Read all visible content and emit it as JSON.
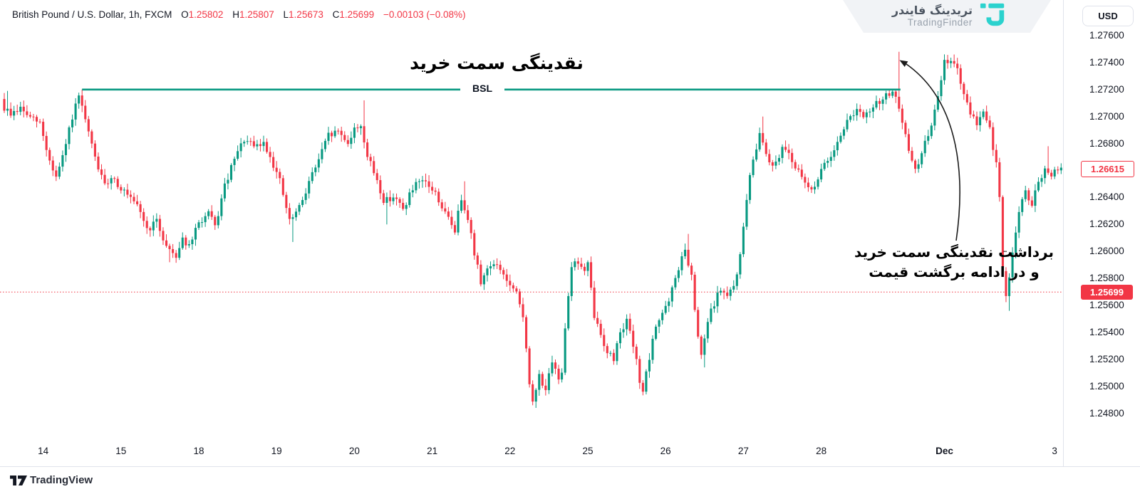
{
  "header": {
    "title": "British Pound / U.S. Dollar, 1h, FXCM",
    "ohlc": {
      "o_label": "O",
      "o": "1.25802",
      "h_label": "H",
      "h": "1.25807",
      "l_label": "L",
      "l": "1.25673",
      "c_label": "C",
      "c": "1.25699",
      "change": "−0.00103 (−0.08%)"
    }
  },
  "watermark": {
    "brand_fa": "تریدینگ فایندر",
    "brand_en": "TradingFinder",
    "logo_color": "#2BD2CE"
  },
  "currency_button": {
    "label": "USD"
  },
  "annotations": {
    "buy_side_liquidity_label": "نقدینگی سمت خرید",
    "bsl_line_label": "BSL",
    "sweep_note_line1": "برداشت نقدینگی سمت خرید",
    "sweep_note_line2": "و در ادامه برگشت قیمت"
  },
  "price_axis": {
    "last_price_label": "1.26615",
    "countdown_price_label": "1.25699"
  },
  "footer": {
    "brand": "TradingView"
  },
  "chart_data": {
    "type": "candlestick",
    "symbol": "British Pound / U.S. Dollar",
    "exchange": "FXCM",
    "timeframe": "1h",
    "up_color": "#089981",
    "down_color": "#F23645",
    "grid": false,
    "y_axis": {
      "min": 1.248,
      "max": 1.276,
      "tick_step": 0.002,
      "ticks": [
        "1.27600",
        "1.27400",
        "1.27200",
        "1.27000",
        "1.26800",
        "1.26400",
        "1.26200",
        "1.26000",
        "1.25800",
        "1.25600",
        "1.25400",
        "1.25200",
        "1.25000",
        "1.24800"
      ]
    },
    "x_axis": {
      "labels": [
        {
          "text": "14",
          "index": 12
        },
        {
          "text": "15",
          "index": 36
        },
        {
          "text": "18",
          "index": 60
        },
        {
          "text": "19",
          "index": 84
        },
        {
          "text": "20",
          "index": 108
        },
        {
          "text": "21",
          "index": 132
        },
        {
          "text": "22",
          "index": 156
        },
        {
          "text": "25",
          "index": 180
        },
        {
          "text": "26",
          "index": 204
        },
        {
          "text": "27",
          "index": 228
        },
        {
          "text": "28",
          "index": 252
        },
        {
          "text": "Dec",
          "index": 290,
          "bold": true
        },
        {
          "text": "3",
          "index": 324
        }
      ]
    },
    "candle_count": 327,
    "bsl_line": {
      "price": 1.272,
      "start_index": 24,
      "end_index": 276,
      "color": "#089981",
      "width": 2.6
    },
    "dotted_line": {
      "price": 1.25699,
      "color": "#F23645"
    },
    "last_price": 1.26615,
    "prev_close_price": 1.25699,
    "high_sweep": 1.2748,
    "low_of_range": 1.2484,
    "anchors": [
      [
        0,
        1.2708
      ],
      [
        3,
        1.2702
      ],
      [
        6,
        1.2706
      ],
      [
        9,
        1.2699
      ],
      [
        12,
        1.2695
      ],
      [
        15,
        1.2667
      ],
      [
        17,
        1.2655
      ],
      [
        19,
        1.2669
      ],
      [
        22,
        1.27
      ],
      [
        24,
        1.2714
      ],
      [
        26,
        1.2697
      ],
      [
        28,
        1.2678
      ],
      [
        30,
        1.2662
      ],
      [
        32,
        1.2648
      ],
      [
        34,
        1.2656
      ],
      [
        37,
        1.2647
      ],
      [
        40,
        1.2638
      ],
      [
        43,
        1.263
      ],
      [
        45,
        1.2616
      ],
      [
        48,
        1.2622
      ],
      [
        51,
        1.2604
      ],
      [
        54,
        1.2597
      ],
      [
        56,
        1.261
      ],
      [
        58,
        1.2603
      ],
      [
        61,
        1.2621
      ],
      [
        64,
        1.2628
      ],
      [
        66,
        1.2618
      ],
      [
        69,
        1.2648
      ],
      [
        72,
        1.2668
      ],
      [
        75,
        1.2683
      ],
      [
        78,
        1.2677
      ],
      [
        81,
        1.268
      ],
      [
        83,
        1.2671
      ],
      [
        86,
        1.2652
      ],
      [
        89,
        1.2622
      ],
      [
        92,
        1.2632
      ],
      [
        95,
        1.2652
      ],
      [
        98,
        1.2668
      ],
      [
        101,
        1.2686
      ],
      [
        104,
        1.2689
      ],
      [
        107,
        1.2681
      ],
      [
        109,
        1.269
      ],
      [
        111,
        1.2694
      ],
      [
        113,
        1.267
      ],
      [
        116,
        1.2653
      ],
      [
        118,
        1.2637
      ],
      [
        121,
        1.2641
      ],
      [
        124,
        1.2631
      ],
      [
        126,
        1.2642
      ],
      [
        128,
        1.2649
      ],
      [
        131,
        1.2651
      ],
      [
        134,
        1.2643
      ],
      [
        137,
        1.2628
      ],
      [
        140,
        1.2616
      ],
      [
        142,
        1.264
      ],
      [
        144,
        1.2626
      ],
      [
        146,
        1.2598
      ],
      [
        148,
        1.2578
      ],
      [
        151,
        1.2591
      ],
      [
        154,
        1.2587
      ],
      [
        157,
        1.2574
      ],
      [
        159,
        1.2568
      ],
      [
        161,
        1.2552
      ],
      [
        162,
        1.253
      ],
      [
        163,
        1.25
      ],
      [
        164,
        1.2487
      ],
      [
        166,
        1.2508
      ],
      [
        168,
        1.2498
      ],
      [
        170,
        1.2516
      ],
      [
        172,
        1.2506
      ],
      [
        173,
        1.2512
      ],
      [
        174,
        1.2545
      ],
      [
        176,
        1.259
      ],
      [
        178,
        1.2592
      ],
      [
        180,
        1.2585
      ],
      [
        181,
        1.259
      ],
      [
        183,
        1.2552
      ],
      [
        185,
        1.2538
      ],
      [
        187,
        1.2526
      ],
      [
        189,
        1.252
      ],
      [
        191,
        1.2542
      ],
      [
        193,
        1.2548
      ],
      [
        195,
        1.253
      ],
      [
        197,
        1.2505
      ],
      [
        198,
        1.2497
      ],
      [
        200,
        1.252
      ],
      [
        202,
        1.2545
      ],
      [
        204,
        1.2555
      ],
      [
        206,
        1.2562
      ],
      [
        208,
        1.258
      ],
      [
        210,
        1.2595
      ],
      [
        211,
        1.26
      ],
      [
        213,
        1.258
      ],
      [
        215,
        1.2535
      ],
      [
        216,
        1.2522
      ],
      [
        218,
        1.2548
      ],
      [
        220,
        1.2562
      ],
      [
        222,
        1.2572
      ],
      [
        224,
        1.2566
      ],
      [
        226,
        1.2574
      ],
      [
        228,
        1.2596
      ],
      [
        230,
        1.264
      ],
      [
        232,
        1.2668
      ],
      [
        234,
        1.2688
      ],
      [
        236,
        1.2674
      ],
      [
        238,
        1.2663
      ],
      [
        240,
        1.2672
      ],
      [
        242,
        1.2678
      ],
      [
        244,
        1.2668
      ],
      [
        246,
        1.2658
      ],
      [
        248,
        1.265
      ],
      [
        250,
        1.2646
      ],
      [
        252,
        1.2654
      ],
      [
        254,
        1.2664
      ],
      [
        256,
        1.2672
      ],
      [
        258,
        1.2682
      ],
      [
        260,
        1.2692
      ],
      [
        262,
        1.27
      ],
      [
        264,
        1.2706
      ],
      [
        266,
        1.2698
      ],
      [
        268,
        1.2704
      ],
      [
        270,
        1.2709
      ],
      [
        272,
        1.2714
      ],
      [
        274,
        1.2717
      ],
      [
        275,
        1.2719
      ],
      [
        276,
        1.2713
      ],
      [
        278,
        1.2694
      ],
      [
        280,
        1.2676
      ],
      [
        282,
        1.266
      ],
      [
        284,
        1.2672
      ],
      [
        286,
        1.2688
      ],
      [
        288,
        1.2703
      ],
      [
        290,
        1.2726
      ],
      [
        291,
        1.274
      ],
      [
        293,
        1.2743
      ],
      [
        295,
        1.2734
      ],
      [
        297,
        1.2716
      ],
      [
        299,
        1.27
      ],
      [
        301,
        1.2696
      ],
      [
        303,
        1.2704
      ],
      [
        305,
        1.269
      ],
      [
        307,
        1.2665
      ],
      [
        308,
        1.264
      ],
      [
        309,
        1.2585
      ],
      [
        310,
        1.2565
      ],
      [
        312,
        1.26
      ],
      [
        314,
        1.263
      ],
      [
        316,
        1.2643
      ],
      [
        318,
        1.2636
      ],
      [
        320,
        1.2649
      ],
      [
        322,
        1.2661
      ],
      [
        324,
        1.2654
      ],
      [
        326,
        1.2662
      ]
    ],
    "spikes": [
      {
        "index": 1,
        "high": 1.2719
      },
      {
        "index": 24,
        "high": 1.272
      },
      {
        "index": 51,
        "low": 1.2592
      },
      {
        "index": 89,
        "low": 1.2607
      },
      {
        "index": 111,
        "high": 1.2712
      },
      {
        "index": 118,
        "low": 1.262
      },
      {
        "index": 142,
        "high": 1.2652
      },
      {
        "index": 164,
        "low": 1.2484
      },
      {
        "index": 198,
        "low": 1.2494
      },
      {
        "index": 211,
        "high": 1.2613
      },
      {
        "index": 216,
        "low": 1.2514
      },
      {
        "index": 234,
        "high": 1.27
      },
      {
        "index": 276,
        "high": 1.2748
      },
      {
        "index": 293,
        "high": 1.2746
      },
      {
        "index": 310,
        "low": 1.2556
      },
      {
        "index": 322,
        "high": 1.2678
      }
    ],
    "seed": 9
  }
}
